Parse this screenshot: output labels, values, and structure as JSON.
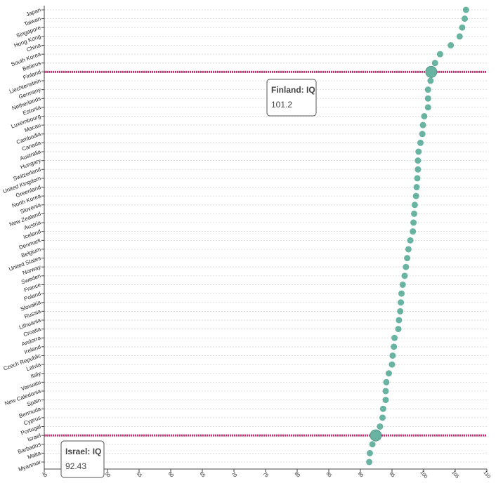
{
  "chart_data": {
    "type": "dot",
    "categories": [
      "Japan",
      "Taiwan",
      "Singapore",
      "Hong Kong",
      "China",
      "South Korea",
      "Belarus",
      "Finland",
      "Liechtenstein",
      "Germany",
      "Netherlands",
      "Estonia",
      "Luxembourg",
      "Macau",
      "Cambodia",
      "Canada",
      "Australia",
      "Hungary",
      "Switzerland",
      "United Kingdom",
      "Greenland",
      "North Korea",
      "Slovenia",
      "New Zealand",
      "Austria",
      "Iceland",
      "Denmark",
      "Belgium",
      "United States",
      "Norway",
      "Sweden",
      "France",
      "Poland",
      "Slovakia",
      "Russia",
      "Lithuania",
      "Croatia",
      "Andorra",
      "Ireland",
      "Czech Republic",
      "Latvia",
      "Italy",
      "Vanuatu",
      "New Caledonia",
      "Spain",
      "Bermuda",
      "Cyprus",
      "Portugal",
      "Israel",
      "Barbados",
      "Malta",
      "Myanmar"
    ],
    "values": [
      106.7,
      106.5,
      106.1,
      105.7,
      104.3,
      102.6,
      101.8,
      101.2,
      101.1,
      100.7,
      100.7,
      100.7,
      100.1,
      99.9,
      99.8,
      99.5,
      99.2,
      99.1,
      99.1,
      99.0,
      98.9,
      98.8,
      98.6,
      98.5,
      98.4,
      98.3,
      97.9,
      97.6,
      97.4,
      97.2,
      97.0,
      96.7,
      96.5,
      96.4,
      96.3,
      96.1,
      96.0,
      95.4,
      95.3,
      95.1,
      95.0,
      94.5,
      94.1,
      94.0,
      94.0,
      93.6,
      93.5,
      93.1,
      92.43,
      91.9,
      91.5,
      91.4
    ],
    "color": "#69b3a2",
    "highlight_color": "#c2306e",
    "xlim": [
      40,
      110
    ],
    "xticks": [
      40,
      45,
      50,
      55,
      60,
      65,
      70,
      75,
      80,
      85,
      90,
      95,
      100,
      105,
      110
    ],
    "grid": true,
    "tooltips": [
      {
        "title": "Finland: IQ"
      },
      {
        "title": "Israel: IQ"
      }
    ]
  }
}
